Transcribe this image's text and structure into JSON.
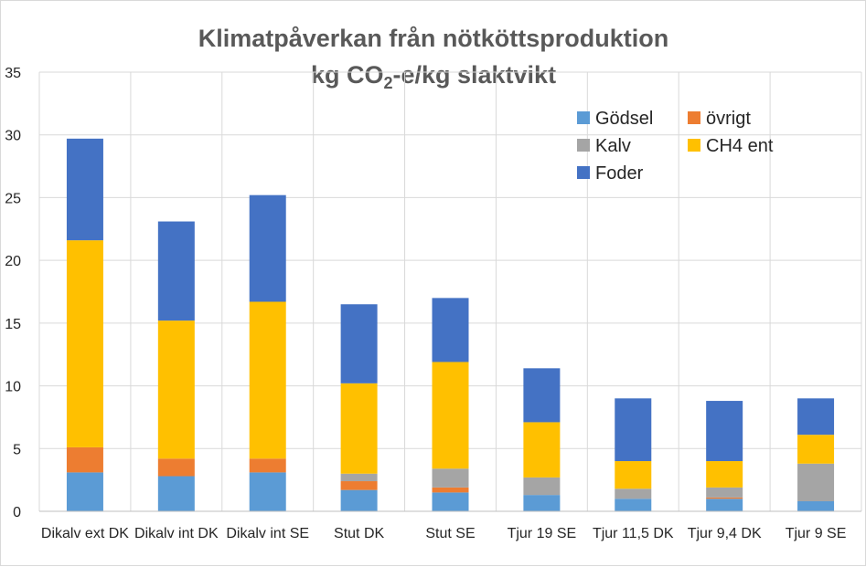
{
  "chart_data": {
    "type": "bar",
    "stacked": true,
    "title": "Klimatpåverkan från nötköttsproduktion",
    "subtitle": {
      "prefix": "kg CO",
      "subscript": "2",
      "suffix": "-e/kg slaktvikt"
    },
    "categories": [
      "Dikalv ext DK",
      "Dikalv int DK",
      "Dikalv int SE",
      "Stut DK",
      "Stut SE",
      "Tjur 19 SE",
      "Tjur 11,5 DK",
      "Tjur 9,4 DK",
      "Tjur 9 SE"
    ],
    "series": [
      {
        "name": "Gödsel",
        "color": "#5b9bd5",
        "values": [
          3.1,
          2.8,
          3.1,
          1.7,
          1.5,
          1.3,
          1.0,
          1.0,
          0.8
        ]
      },
      {
        "name": "övrigt",
        "color": "#ed7d31",
        "values": [
          2.0,
          1.4,
          1.1,
          0.7,
          0.4,
          0.0,
          0.0,
          0.1,
          0.0
        ]
      },
      {
        "name": "Kalv",
        "color": "#a5a5a5",
        "values": [
          0.0,
          0.0,
          0.0,
          0.6,
          1.5,
          1.4,
          0.8,
          0.8,
          3.0
        ]
      },
      {
        "name": "CH4 ent",
        "color": "#ffc000",
        "values": [
          16.5,
          11.0,
          12.5,
          7.2,
          8.5,
          4.4,
          2.2,
          2.1,
          2.3
        ]
      },
      {
        "name": "Foder",
        "color": "#4472c4",
        "values": [
          8.1,
          7.9,
          8.5,
          6.3,
          5.1,
          4.3,
          5.0,
          4.8,
          2.9
        ]
      }
    ],
    "ylim": [
      0,
      35
    ],
    "yticks": [
      0,
      5,
      10,
      15,
      20,
      25,
      30,
      35
    ],
    "xlabel": "",
    "ylabel": "",
    "grid": {
      "horizontal": true,
      "vertical": true
    },
    "legend_position": "top-right",
    "legend_order": [
      "Gödsel",
      "övrigt",
      "Kalv",
      "CH4 ent",
      "Foder"
    ]
  }
}
